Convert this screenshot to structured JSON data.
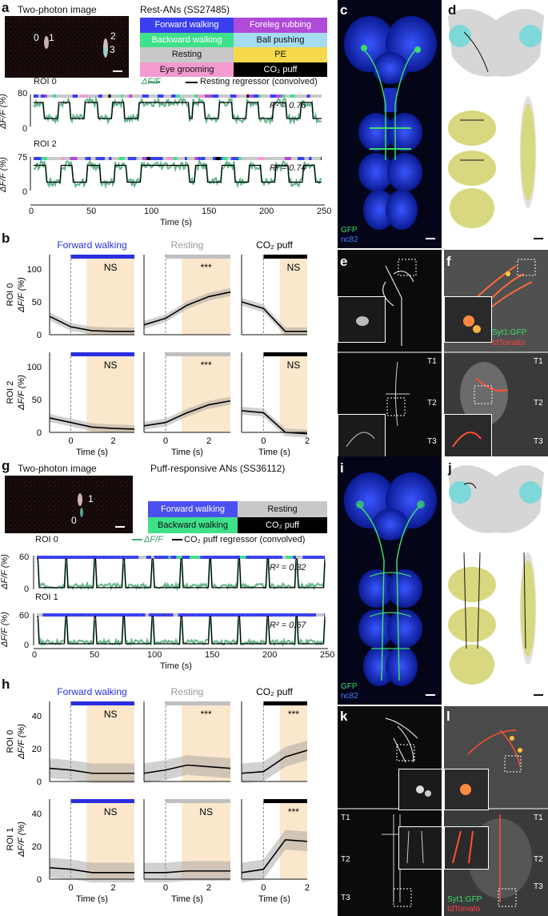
{
  "panels": {
    "a": {
      "label": "a",
      "image_title": "Two-photon image",
      "title": "Rest-ANs (SS27485)",
      "roi_labels": [
        "0",
        "1",
        "2",
        "3"
      ]
    },
    "b": {
      "label": "b"
    },
    "c": {
      "label": "c",
      "gfp": "GFP",
      "nc82": "nc82"
    },
    "d": {
      "label": "d"
    },
    "e": {
      "label": "e",
      "t1": "T1",
      "t2": "T2",
      "t3": "T3"
    },
    "f": {
      "label": "f",
      "syt": "Syt1:GFP",
      "td": "tdTomato",
      "t1": "T1",
      "t2": "T2",
      "t3": "T3"
    },
    "g": {
      "label": "g",
      "image_title": "Two-photon image",
      "title": "Puff-responsive ANs (SS36112)",
      "roi_labels": [
        "1",
        "0"
      ]
    },
    "h": {
      "label": "h"
    },
    "i": {
      "label": "i",
      "gfp": "GFP",
      "nc82": "nc82"
    },
    "j": {
      "label": "j"
    },
    "k": {
      "label": "k",
      "t1": "T1",
      "t2": "T2",
      "t3": "T3"
    },
    "l": {
      "label": "l",
      "syt": "Syt1:GFP",
      "td": "tdTomato",
      "t1": "T1",
      "t2": "T2",
      "t3": "T3"
    }
  },
  "legend_a": [
    {
      "label": "Forward walking",
      "color": "#3a3ff0",
      "text": "#ffffff"
    },
    {
      "label": "Foreleg rubbing",
      "color": "#b04ad8",
      "text": "#ffffff"
    },
    {
      "label": "Backward walking",
      "color": "#3fe08a",
      "text": "#ffffff"
    },
    {
      "label": "Ball pushing",
      "color": "#a6dcef",
      "text": "#111111"
    },
    {
      "label": "Resting",
      "color": "#c8c8c8",
      "text": "#111111"
    },
    {
      "label": "PE",
      "color": "#f5d94a",
      "text": "#111111"
    },
    {
      "label": "Eye grooming",
      "color": "#f39ad0",
      "text": "#111111"
    },
    {
      "label": "CO₂ puff",
      "color": "#000000",
      "text": "#ffffff"
    }
  ],
  "legend_g": [
    {
      "label": "Forward walking",
      "color": "#4b4ff0",
      "text": "#ffffff"
    },
    {
      "label": "Resting",
      "color": "#c8c8c8",
      "text": "#111111"
    },
    {
      "label": "Backward walking",
      "color": "#3fe08a",
      "text": "#111111"
    },
    {
      "label": "CO₂ puff",
      "color": "#000000",
      "text": "#ffffff"
    }
  ],
  "traces_a": {
    "legend_df": "ΔF/F",
    "legend_reg": "Resting regressor (convolved)",
    "ylabel": "ΔF/F (%)",
    "xlabel": "Time (s)",
    "xticks": [
      "0",
      "50",
      "100",
      "150",
      "200",
      "250"
    ],
    "roi0": {
      "name": "ROI 0",
      "ytop": "80",
      "ybot": "0",
      "r2": "R² = 0.76"
    },
    "roi2": {
      "name": "ROI 2",
      "ytop": "75",
      "ybot": "0",
      "r2": "R² = 0.74"
    }
  },
  "traces_g": {
    "legend_df": "ΔF/F",
    "legend_reg": "CO₂ puff regressor (convolved)",
    "ylabel": "ΔF/F (%)",
    "xlabel": "Time (s)",
    "xticks": [
      "0",
      "50",
      "100",
      "150",
      "200",
      "250"
    ],
    "roi0": {
      "name": "ROI 0",
      "ytop": "60",
      "ybot": "0",
      "r2": "R² = 0.32"
    },
    "roi1": {
      "name": "ROI 1",
      "ytop": "60",
      "ybot": "0",
      "r2": "R² = 0.67"
    }
  },
  "event_b": {
    "titles": [
      "Forward walking",
      "Resting",
      "CO₂ puff"
    ],
    "title_colors": [
      "#2b2ee0",
      "#9a9a9a",
      "#000000"
    ],
    "sig_row0": [
      "NS",
      "***",
      "NS"
    ],
    "sig_row1": [
      "NS",
      "***",
      "NS"
    ],
    "row_labels": [
      "ROI 0",
      "ROI 2"
    ],
    "ylabel": "ΔF/F (%)",
    "yticks": [
      "0",
      "50",
      "100"
    ],
    "xticks": [
      "0",
      "2"
    ],
    "xlabel": "Time (s)"
  },
  "event_h": {
    "titles": [
      "Forward walking",
      "Resting",
      "CO₂ puff"
    ],
    "title_colors": [
      "#2b2ee0",
      "#9a9a9a",
      "#000000"
    ],
    "sig_row0": [
      "NS",
      "***",
      "***"
    ],
    "sig_row1": [
      "NS",
      "NS",
      "***"
    ],
    "row_labels": [
      "ROI 0",
      "ROI 1"
    ],
    "ylabel": "ΔF/F (%)",
    "yticks": [
      "0",
      "20",
      "40"
    ],
    "xticks": [
      "0",
      "2"
    ],
    "xlabel": "Time (s)"
  },
  "chart_data": [
    {
      "type": "line",
      "panel": "b",
      "row": "ROI 0",
      "title": "Forward walking",
      "x": [
        -1,
        0,
        1,
        2,
        3
      ],
      "values": [
        28,
        12,
        6,
        5,
        5
      ],
      "ylim": [
        0,
        100
      ],
      "sig": "NS"
    },
    {
      "type": "line",
      "panel": "b",
      "row": "ROI 0",
      "title": "Resting",
      "x": [
        -1,
        0,
        1,
        2,
        3
      ],
      "values": [
        15,
        25,
        45,
        58,
        65
      ],
      "ylim": [
        0,
        100
      ],
      "sig": "***"
    },
    {
      "type": "line",
      "panel": "b",
      "row": "ROI 0",
      "title": "CO₂ puff",
      "x": [
        -1,
        0,
        1,
        2
      ],
      "values": [
        50,
        40,
        5,
        5
      ],
      "ylim": [
        0,
        100
      ],
      "sig": "NS"
    },
    {
      "type": "line",
      "panel": "b",
      "row": "ROI 2",
      "title": "Forward walking",
      "x": [
        -1,
        0,
        1,
        2,
        3
      ],
      "values": [
        22,
        15,
        8,
        6,
        5
      ],
      "ylim": [
        0,
        100
      ],
      "sig": "NS"
    },
    {
      "type": "line",
      "panel": "b",
      "row": "ROI 2",
      "title": "Resting",
      "x": [
        -1,
        0,
        1,
        2,
        3
      ],
      "values": [
        10,
        15,
        30,
        42,
        48
      ],
      "ylim": [
        0,
        100
      ],
      "sig": "***"
    },
    {
      "type": "line",
      "panel": "b",
      "row": "ROI 2",
      "title": "CO₂ puff",
      "x": [
        -1,
        0,
        1,
        2
      ],
      "values": [
        33,
        30,
        0,
        -2
      ],
      "ylim": [
        0,
        100
      ],
      "sig": "NS"
    },
    {
      "type": "line",
      "panel": "h",
      "row": "ROI 0",
      "title": "Forward walking",
      "x": [
        -1,
        0,
        1,
        2,
        3
      ],
      "values": [
        8,
        7,
        5,
        5,
        5
      ],
      "ylim": [
        0,
        40
      ],
      "sig": "NS"
    },
    {
      "type": "line",
      "panel": "h",
      "row": "ROI 0",
      "title": "Resting",
      "x": [
        -1,
        0,
        1,
        2,
        3
      ],
      "values": [
        5,
        7,
        10,
        9,
        8
      ],
      "ylim": [
        0,
        40
      ],
      "sig": "***"
    },
    {
      "type": "line",
      "panel": "h",
      "row": "ROI 0",
      "title": "CO₂ puff",
      "x": [
        -1,
        0,
        1,
        2
      ],
      "values": [
        5,
        6,
        15,
        19
      ],
      "ylim": [
        0,
        40
      ],
      "sig": "***"
    },
    {
      "type": "line",
      "panel": "h",
      "row": "ROI 1",
      "title": "Forward walking",
      "x": [
        -1,
        0,
        1,
        2,
        3
      ],
      "values": [
        7,
        6,
        4,
        4,
        4
      ],
      "ylim": [
        0,
        40
      ],
      "sig": "NS"
    },
    {
      "type": "line",
      "panel": "h",
      "row": "ROI 1",
      "title": "Resting",
      "x": [
        -1,
        0,
        1,
        2,
        3
      ],
      "values": [
        4,
        4,
        5,
        5,
        5
      ],
      "ylim": [
        0,
        40
      ],
      "sig": "NS"
    },
    {
      "type": "line",
      "panel": "h",
      "row": "ROI 1",
      "title": "CO₂ puff",
      "x": [
        -1,
        0,
        1,
        2
      ],
      "values": [
        4,
        6,
        24,
        23
      ],
      "ylim": [
        0,
        40
      ],
      "sig": "***"
    }
  ]
}
